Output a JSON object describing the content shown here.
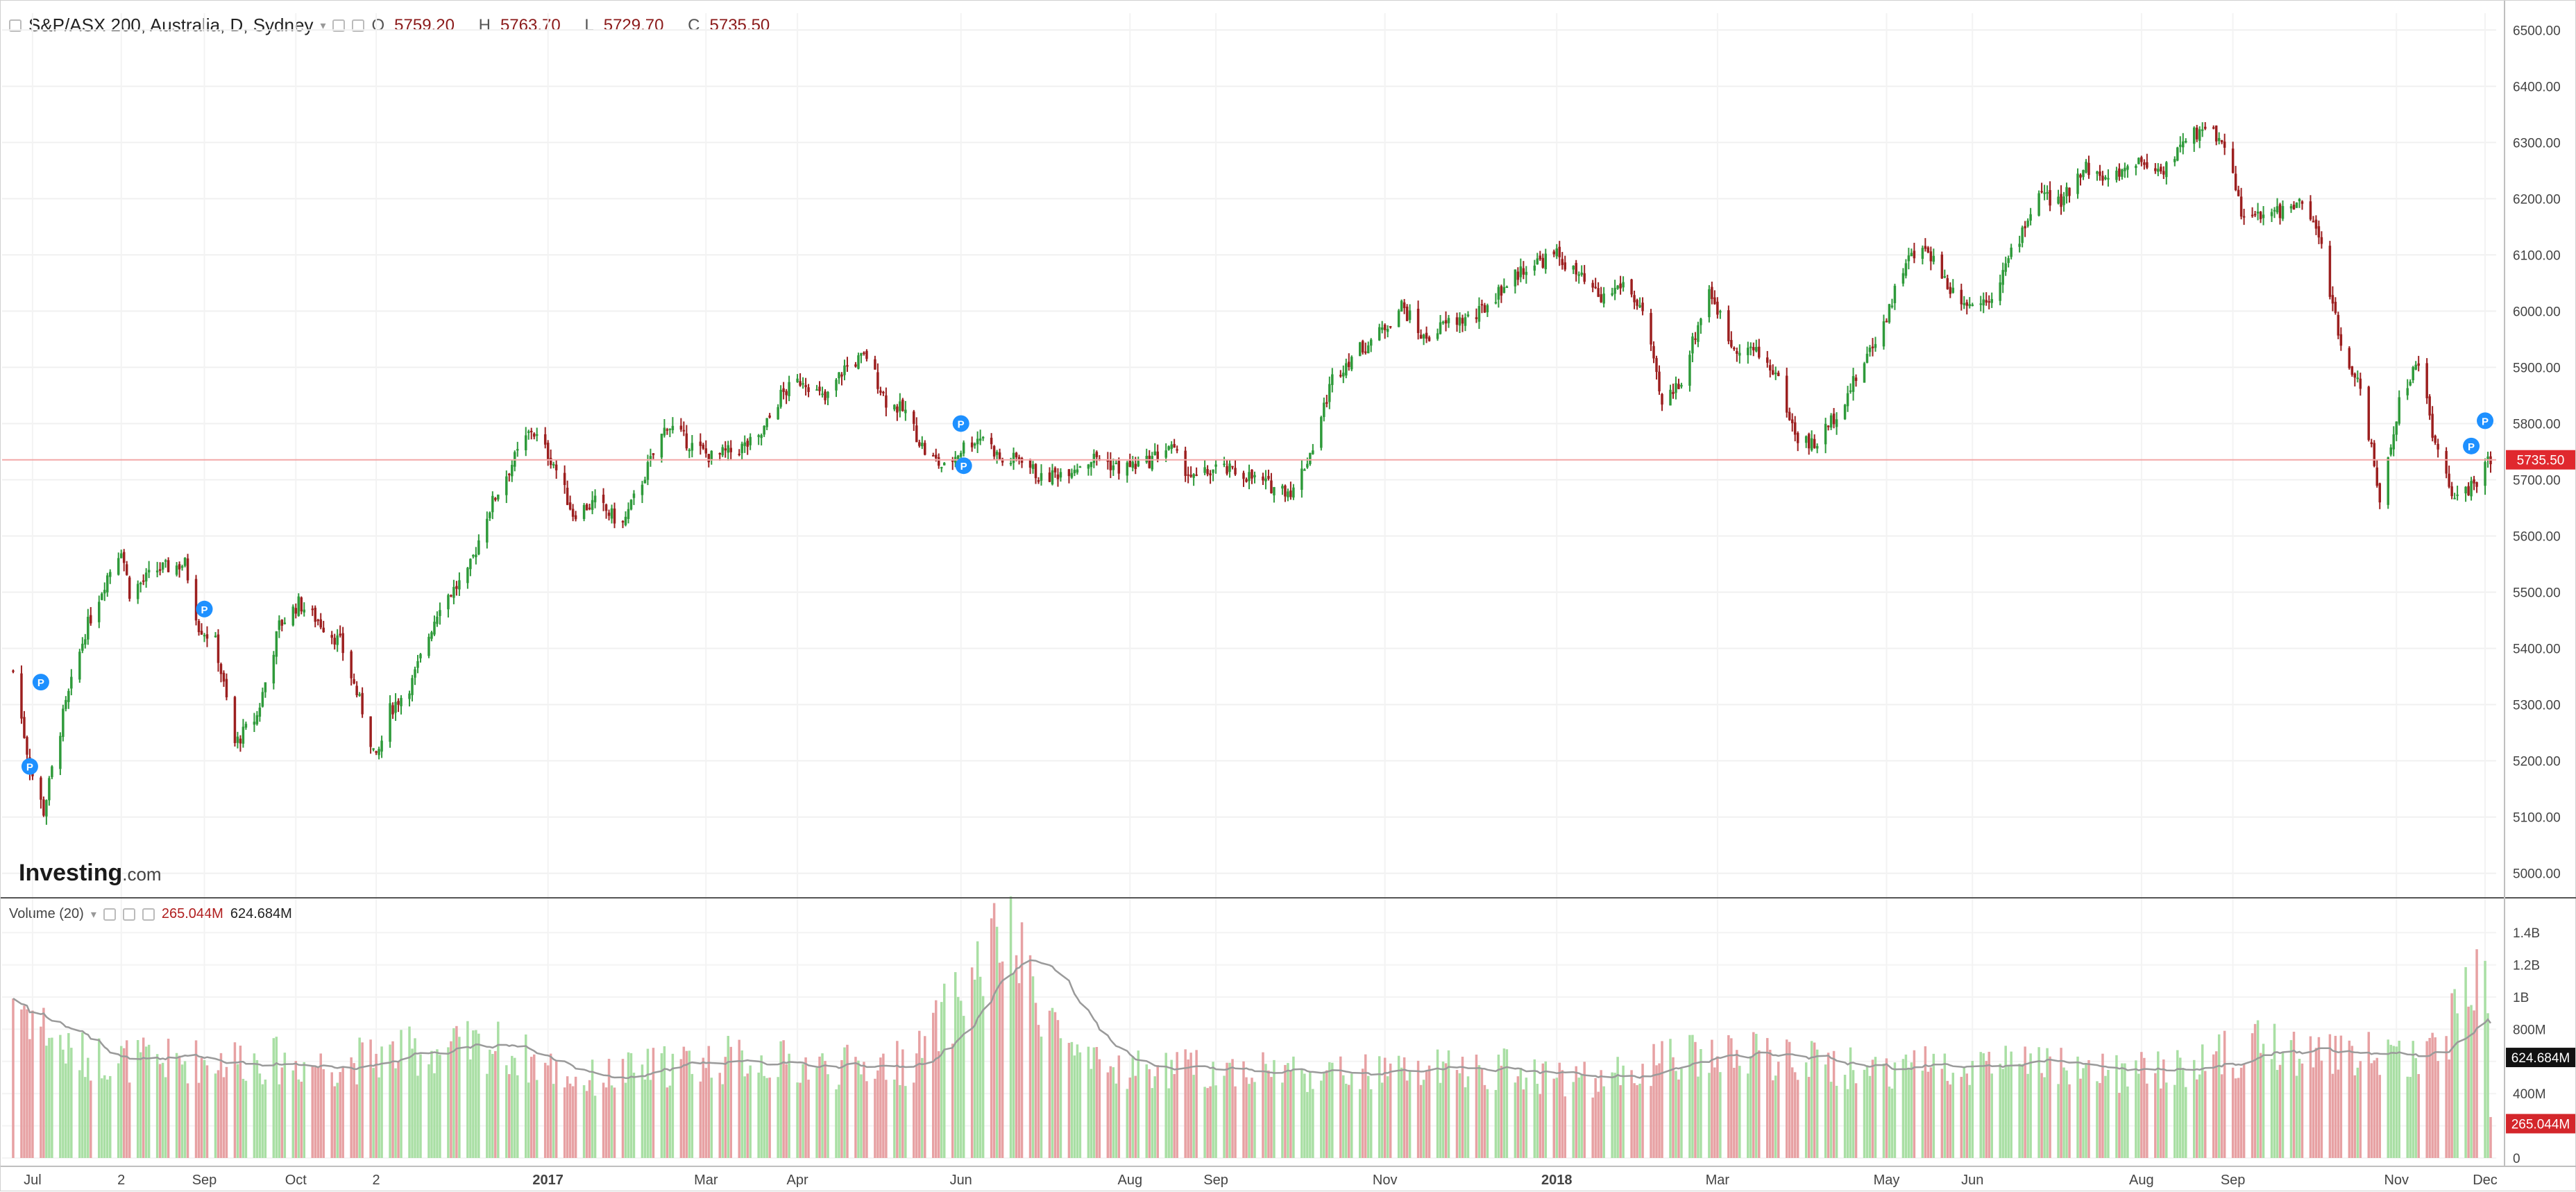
{
  "header": {
    "symbol": "S&P/ASX 200, Australia, D, Sydney",
    "ohlc": [
      {
        "label": "O",
        "value": "5759.20"
      },
      {
        "label": "H",
        "value": "5763.70"
      },
      {
        "label": "L",
        "value": "5729.70"
      },
      {
        "label": "C",
        "value": "5735.50"
      }
    ]
  },
  "volume_header": {
    "label": "Volume (20)",
    "volume_value": "265.044M",
    "ma_value": "624.684M"
  },
  "watermark": "Investing.com",
  "price_tag": "5735.50",
  "volume_tag": "624.684M",
  "volume_tag2": "265.044M",
  "colors": {
    "up": "#2e9a3a",
    "down": "#9c1f1f",
    "vol_up": "#a9dfa4",
    "vol_down": "#e7a1a3",
    "price_line": "#f2a0a0",
    "marker": "#1e90ff"
  },
  "chart_data": [
    {
      "type": "candlestick",
      "title": "S&P/ASX 200, Australia, D, Sydney",
      "y_range": [
        4960,
        6530
      ],
      "y_ticks": [
        "6500.00",
        "6400.00",
        "6300.00",
        "6200.00",
        "6100.00",
        "6000.00",
        "5900.00",
        "5800.00",
        "5700.00",
        "5600.00",
        "5500.00",
        "5400.00",
        "5300.00",
        "5200.00",
        "5100.00",
        "5000.00"
      ],
      "x_ticks": [
        "Jul",
        "2",
        "Sep",
        "Oct",
        "2",
        "2017",
        "Mar",
        "Apr",
        "Jun",
        "Aug",
        "Sep",
        "Nov",
        "2018",
        "Mar",
        "May",
        "Jun",
        "Aug",
        "Sep",
        "Nov",
        "Dec"
      ],
      "last_price": 5735.5,
      "close_series_approx": [
        {
          "x": "2016-06-24",
          "y": 5360
        },
        {
          "x": "2016-06-30",
          "y": 5190
        },
        {
          "x": "2016-07-05",
          "y": 5110
        },
        {
          "x": "2016-07-12",
          "y": 5280
        },
        {
          "x": "2016-07-20",
          "y": 5430
        },
        {
          "x": "2016-07-28",
          "y": 5530
        },
        {
          "x": "2016-08-02",
          "y": 5580
        },
        {
          "x": "2016-08-05",
          "y": 5500
        },
        {
          "x": "2016-08-15",
          "y": 5540
        },
        {
          "x": "2016-08-25",
          "y": 5550
        },
        {
          "x": "2016-08-30",
          "y": 5440
        },
        {
          "x": "2016-09-05",
          "y": 5410
        },
        {
          "x": "2016-09-12",
          "y": 5230
        },
        {
          "x": "2016-09-20",
          "y": 5280
        },
        {
          "x": "2016-09-28",
          "y": 5440
        },
        {
          "x": "2016-10-05",
          "y": 5480
        },
        {
          "x": "2016-10-12",
          "y": 5450
        },
        {
          "x": "2016-10-20",
          "y": 5410
        },
        {
          "x": "2016-10-28",
          "y": 5290
        },
        {
          "x": "2016-11-02",
          "y": 5200
        },
        {
          "x": "2016-11-07",
          "y": 5290
        },
        {
          "x": "2016-11-15",
          "y": 5340
        },
        {
          "x": "2016-11-25",
          "y": 5480
        },
        {
          "x": "2016-12-05",
          "y": 5530
        },
        {
          "x": "2016-12-12",
          "y": 5640
        },
        {
          "x": "2016-12-20",
          "y": 5720
        },
        {
          "x": "2016-12-28",
          "y": 5790
        },
        {
          "x": "2017-01-05",
          "y": 5730
        },
        {
          "x": "2017-01-12",
          "y": 5640
        },
        {
          "x": "2017-01-20",
          "y": 5660
        },
        {
          "x": "2017-01-30",
          "y": 5620
        },
        {
          "x": "2017-02-07",
          "y": 5710
        },
        {
          "x": "2017-02-15",
          "y": 5800
        },
        {
          "x": "2017-02-24",
          "y": 5760
        },
        {
          "x": "2017-03-03",
          "y": 5740
        },
        {
          "x": "2017-03-10",
          "y": 5750
        },
        {
          "x": "2017-03-20",
          "y": 5770
        },
        {
          "x": "2017-03-28",
          "y": 5850
        },
        {
          "x": "2017-04-05",
          "y": 5880
        },
        {
          "x": "2017-04-13",
          "y": 5840
        },
        {
          "x": "2017-04-20",
          "y": 5900
        },
        {
          "x": "2017-04-28",
          "y": 5920
        },
        {
          "x": "2017-05-05",
          "y": 5840
        },
        {
          "x": "2017-05-12",
          "y": 5820
        },
        {
          "x": "2017-05-19",
          "y": 5750
        },
        {
          "x": "2017-05-26",
          "y": 5720
        },
        {
          "x": "2017-06-02",
          "y": 5760
        },
        {
          "x": "2017-06-09",
          "y": 5780
        },
        {
          "x": "2017-06-16",
          "y": 5730
        },
        {
          "x": "2017-06-23",
          "y": 5740
        },
        {
          "x": "2017-06-30",
          "y": 5700
        },
        {
          "x": "2017-07-10",
          "y": 5720
        },
        {
          "x": "2017-07-20",
          "y": 5740
        },
        {
          "x": "2017-07-28",
          "y": 5720
        },
        {
          "x": "2017-08-07",
          "y": 5730
        },
        {
          "x": "2017-08-15",
          "y": 5760
        },
        {
          "x": "2017-08-24",
          "y": 5700
        },
        {
          "x": "2017-09-01",
          "y": 5720
        },
        {
          "x": "2017-09-11",
          "y": 5710
        },
        {
          "x": "2017-09-20",
          "y": 5690
        },
        {
          "x": "2017-09-29",
          "y": 5680
        },
        {
          "x": "2017-10-06",
          "y": 5760
        },
        {
          "x": "2017-10-13",
          "y": 5880
        },
        {
          "x": "2017-10-20",
          "y": 5920
        },
        {
          "x": "2017-10-30",
          "y": 5960
        },
        {
          "x": "2017-11-07",
          "y": 6010
        },
        {
          "x": "2017-11-15",
          "y": 5950
        },
        {
          "x": "2017-11-24",
          "y": 5980
        },
        {
          "x": "2017-12-04",
          "y": 5990
        },
        {
          "x": "2017-12-13",
          "y": 6040
        },
        {
          "x": "2017-12-22",
          "y": 6080
        },
        {
          "x": "2018-01-02",
          "y": 6100
        },
        {
          "x": "2018-01-10",
          "y": 6060
        },
        {
          "x": "2018-01-18",
          "y": 6020
        },
        {
          "x": "2018-01-26",
          "y": 6050
        },
        {
          "x": "2018-02-02",
          "y": 6000
        },
        {
          "x": "2018-02-09",
          "y": 5830
        },
        {
          "x": "2018-02-16",
          "y": 5880
        },
        {
          "x": "2018-02-26",
          "y": 6040
        },
        {
          "x": "2018-03-06",
          "y": 5940
        },
        {
          "x": "2018-03-14",
          "y": 5930
        },
        {
          "x": "2018-03-22",
          "y": 5890
        },
        {
          "x": "2018-03-29",
          "y": 5780
        },
        {
          "x": "2018-04-05",
          "y": 5760
        },
        {
          "x": "2018-04-13",
          "y": 5820
        },
        {
          "x": "2018-04-20",
          "y": 5880
        },
        {
          "x": "2018-04-30",
          "y": 5980
        },
        {
          "x": "2018-05-08",
          "y": 6090
        },
        {
          "x": "2018-05-16",
          "y": 6110
        },
        {
          "x": "2018-05-24",
          "y": 6040
        },
        {
          "x": "2018-06-01",
          "y": 6010
        },
        {
          "x": "2018-06-08",
          "y": 6030
        },
        {
          "x": "2018-06-15",
          "y": 6100
        },
        {
          "x": "2018-06-25",
          "y": 6210
        },
        {
          "x": "2018-07-03",
          "y": 6190
        },
        {
          "x": "2018-07-11",
          "y": 6260
        },
        {
          "x": "2018-07-20",
          "y": 6230
        },
        {
          "x": "2018-07-30",
          "y": 6270
        },
        {
          "x": "2018-08-08",
          "y": 6250
        },
        {
          "x": "2018-08-17",
          "y": 6300
        },
        {
          "x": "2018-08-24",
          "y": 6330
        },
        {
          "x": "2018-08-31",
          "y": 6300
        },
        {
          "x": "2018-09-07",
          "y": 6160
        },
        {
          "x": "2018-09-14",
          "y": 6170
        },
        {
          "x": "2018-09-21",
          "y": 6180
        },
        {
          "x": "2018-09-28",
          "y": 6190
        },
        {
          "x": "2018-10-05",
          "y": 6120
        },
        {
          "x": "2018-10-12",
          "y": 5930
        },
        {
          "x": "2018-10-19",
          "y": 5870
        },
        {
          "x": "2018-10-26",
          "y": 5660
        },
        {
          "x": "2018-11-02",
          "y": 5840
        },
        {
          "x": "2018-11-09",
          "y": 5910
        },
        {
          "x": "2018-11-16",
          "y": 5740
        },
        {
          "x": "2018-11-23",
          "y": 5660
        },
        {
          "x": "2018-11-30",
          "y": 5700
        },
        {
          "x": "2018-12-05",
          "y": 5735.5
        }
      ]
    },
    {
      "type": "bar",
      "title": "Volume (20)",
      "y_range": [
        0,
        1500000000
      ],
      "y_ticks": [
        "1.4B",
        "1.2B",
        "1B",
        "800M",
        "600M",
        "400M",
        "200M",
        "0"
      ],
      "last_volume": "265.044M",
      "ma20_last": "624.684M",
      "typical_volume": "500M–700M",
      "volume_series_approx": [
        {
          "x": "2016-06-24",
          "y": 1020000000
        },
        {
          "x": "2016-07-15",
          "y": 640000000
        },
        {
          "x": "2016-08-15",
          "y": 600000000
        },
        {
          "x": "2016-09-15",
          "y": 620000000
        },
        {
          "x": "2016-10-15",
          "y": 580000000
        },
        {
          "x": "2016-11-15",
          "y": 660000000
        },
        {
          "x": "2016-12-15",
          "y": 700000000
        },
        {
          "x": "2017-01-15",
          "y": 480000000
        },
        {
          "x": "2017-02-15",
          "y": 580000000
        },
        {
          "x": "2017-03-15",
          "y": 620000000
        },
        {
          "x": "2017-04-15",
          "y": 560000000
        },
        {
          "x": "2017-05-15",
          "y": 600000000
        },
        {
          "x": "2017-06-16",
          "y": 1390000000
        },
        {
          "x": "2017-07-15",
          "y": 560000000
        },
        {
          "x": "2017-08-15",
          "y": 550000000
        },
        {
          "x": "2017-09-15",
          "y": 560000000
        },
        {
          "x": "2017-10-15",
          "y": 520000000
        },
        {
          "x": "2017-11-15",
          "y": 540000000
        },
        {
          "x": "2017-12-15",
          "y": 560000000
        },
        {
          "x": "2018-01-15",
          "y": 480000000
        },
        {
          "x": "2018-02-15",
          "y": 620000000
        },
        {
          "x": "2018-03-15",
          "y": 640000000
        },
        {
          "x": "2018-04-15",
          "y": 560000000
        },
        {
          "x": "2018-05-15",
          "y": 580000000
        },
        {
          "x": "2018-06-15",
          "y": 600000000
        },
        {
          "x": "2018-07-15",
          "y": 520000000
        },
        {
          "x": "2018-08-15",
          "y": 560000000
        },
        {
          "x": "2018-09-15",
          "y": 700000000
        },
        {
          "x": "2018-10-15",
          "y": 640000000
        },
        {
          "x": "2018-11-15",
          "y": 660000000
        },
        {
          "x": "2018-12-03",
          "y": 1220000000
        },
        {
          "x": "2018-12-05",
          "y": 265044000
        }
      ]
    }
  ]
}
